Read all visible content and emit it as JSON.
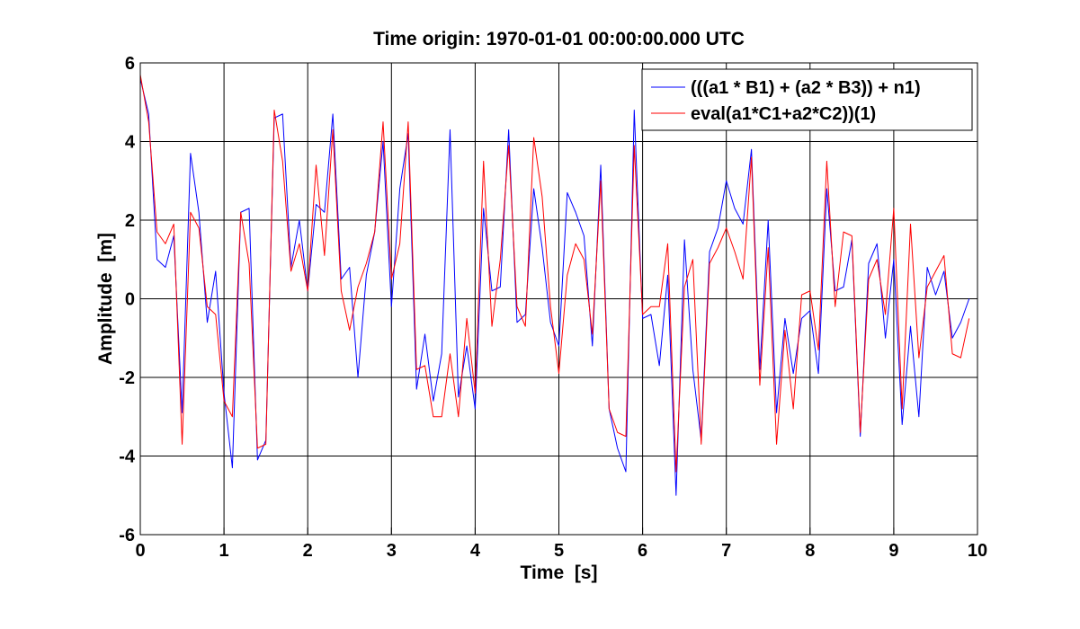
{
  "chart_data": {
    "type": "line",
    "title": "Time origin: 1970-01-01 00:00:00.000 UTC",
    "xlabel": "Time  [s]",
    "ylabel": "Amplitude  [m]",
    "xlim": [
      0,
      10
    ],
    "ylim": [
      -6,
      6
    ],
    "xticks": [
      0,
      1,
      2,
      3,
      4,
      5,
      6,
      7,
      8,
      9,
      10
    ],
    "yticks": [
      -6,
      -4,
      -2,
      0,
      2,
      4,
      6
    ],
    "grid": true,
    "legend_position": "top-right",
    "x": [
      0,
      0.1,
      0.2,
      0.3,
      0.4,
      0.5,
      0.6,
      0.7,
      0.8,
      0.9,
      1.0,
      1.1,
      1.2,
      1.3,
      1.4,
      1.5,
      1.6,
      1.7,
      1.8,
      1.9,
      2.0,
      2.1,
      2.2,
      2.3,
      2.4,
      2.5,
      2.6,
      2.7,
      2.8,
      2.9,
      3.0,
      3.1,
      3.2,
      3.3,
      3.4,
      3.5,
      3.6,
      3.7,
      3.8,
      3.9,
      4.0,
      4.1,
      4.2,
      4.3,
      4.4,
      4.5,
      4.6,
      4.7,
      4.8,
      4.9,
      5.0,
      5.1,
      5.2,
      5.3,
      5.4,
      5.5,
      5.6,
      5.7,
      5.8,
      5.9,
      6.0,
      6.1,
      6.2,
      6.3,
      6.4,
      6.5,
      6.6,
      6.7,
      6.8,
      6.9,
      7.0,
      7.1,
      7.2,
      7.3,
      7.4,
      7.5,
      7.6,
      7.7,
      7.8,
      7.9,
      8.0,
      8.1,
      8.2,
      8.3,
      8.4,
      8.5,
      8.6,
      8.7,
      8.8,
      8.9,
      9.0,
      9.1,
      9.2,
      9.3,
      9.4,
      9.5,
      9.6,
      9.7,
      9.8,
      9.9
    ],
    "series": [
      {
        "name": "(((a1 * B1) + (a2 * B3)) + n1)",
        "color": "#0000ff",
        "values": [
          5.6,
          4.7,
          1.0,
          0.8,
          1.6,
          -2.9,
          3.7,
          2.2,
          -0.6,
          0.7,
          -2.4,
          -4.3,
          2.2,
          2.3,
          -4.1,
          -3.6,
          4.6,
          4.7,
          0.8,
          2.0,
          0.2,
          2.4,
          2.2,
          4.7,
          0.5,
          0.8,
          -2.0,
          0.6,
          1.7,
          4.0,
          -0.2,
          2.8,
          4.2,
          -2.3,
          -0.9,
          -2.6,
          -1.4,
          4.3,
          -2.5,
          -1.2,
          -2.8,
          2.3,
          0.2,
          0.3,
          4.3,
          -0.6,
          -0.4,
          2.8,
          1.3,
          -0.6,
          -1.2,
          2.7,
          2.2,
          1.6,
          -1.2,
          3.4,
          -2.8,
          -3.8,
          -4.4,
          4.8,
          -0.5,
          -0.4,
          -1.7,
          0.6,
          -5.0,
          1.5,
          -1.8,
          -3.6,
          1.2,
          1.8,
          3.0,
          2.3,
          1.9,
          3.8,
          -1.8,
          2.0,
          -2.9,
          -0.5,
          -1.9,
          -0.5,
          -0.3,
          -1.9,
          2.8,
          0.2,
          0.3,
          1.5,
          -3.5,
          0.9,
          1.4,
          -1.0,
          1.0,
          -3.2,
          -0.7,
          -3.0,
          0.8,
          0.1,
          0.7,
          -1.0,
          -0.6,
          0.0
        ]
      },
      {
        "name": "eval(a1*C1+a2*C2))(1)",
        "color": "#ff0000",
        "values": [
          5.7,
          4.5,
          1.7,
          1.4,
          1.9,
          -3.7,
          2.2,
          1.8,
          -0.2,
          -0.4,
          -2.6,
          -3.0,
          2.2,
          0.9,
          -3.8,
          -3.7,
          4.8,
          3.5,
          0.7,
          1.4,
          0.2,
          3.4,
          1.1,
          4.3,
          0.2,
          -0.8,
          0.3,
          0.9,
          1.7,
          4.5,
          0.5,
          1.4,
          4.5,
          -1.8,
          -1.7,
          -3.0,
          -3.0,
          -1.4,
          -3.0,
          -0.5,
          -2.4,
          3.5,
          -0.7,
          1.0,
          3.9,
          -0.2,
          -0.7,
          4.1,
          2.6,
          -0.2,
          -1.9,
          0.6,
          1.4,
          1.0,
          -0.9,
          3.0,
          -2.8,
          -3.4,
          -3.5,
          3.9,
          -0.4,
          -0.2,
          -0.2,
          1.4,
          -4.4,
          0.3,
          1.0,
          -3.7,
          0.9,
          1.3,
          1.8,
          1.2,
          0.5,
          3.6,
          -2.2,
          1.3,
          -3.7,
          -0.8,
          -2.8,
          0.1,
          0.2,
          -1.3,
          3.5,
          -0.2,
          1.7,
          1.6,
          -3.4,
          0.5,
          1.0,
          -0.4,
          2.3,
          -2.8,
          1.9,
          -1.5,
          0.3,
          0.7,
          1.1,
          -1.4,
          -1.5,
          -0.5
        ]
      }
    ]
  }
}
